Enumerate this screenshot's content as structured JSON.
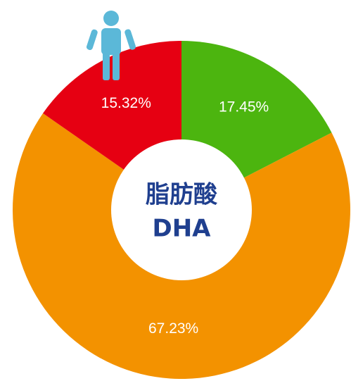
{
  "chart_data": {
    "type": "donut",
    "center_text": [
      "脂肪酸",
      "DHA"
    ],
    "values": [
      17.45,
      67.23,
      15.32
    ],
    "value_labels": [
      "17.45%",
      "67.23%",
      "15.32%"
    ],
    "colors": [
      "#4cb50f",
      "#f39200",
      "#e60012"
    ]
  }
}
